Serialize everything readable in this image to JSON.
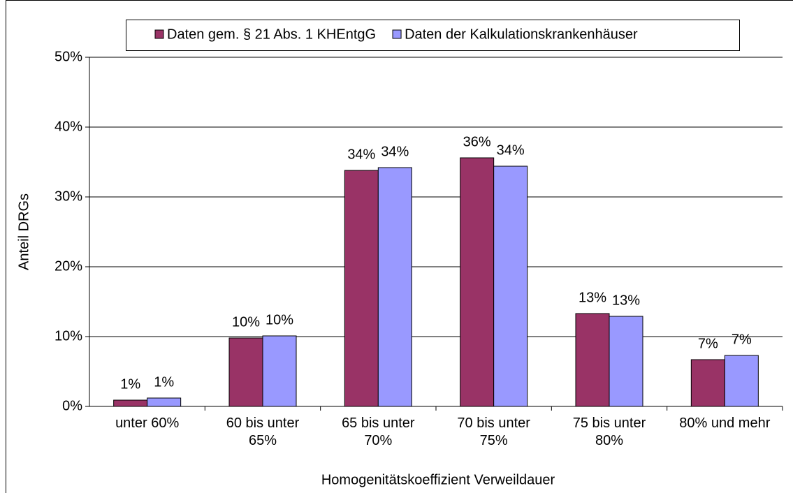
{
  "chart_data": {
    "type": "bar",
    "x_label": "Homogenitätskoeffizient Verweildauer",
    "y_label": "Anteil DRGs",
    "categories": [
      "unter 60%",
      "60 bis unter 65%",
      "65 bis unter 70%",
      "70 bis unter 75%",
      "75 bis unter 80%",
      "80% und mehr"
    ],
    "series": [
      {
        "name": "Daten gem. § 21 Abs. 1 KHEntgG",
        "color": "#993366",
        "values": [
          0.9,
          9.8,
          33.8,
          35.6,
          13.3,
          6.7
        ],
        "value_labels": [
          "1%",
          "10%",
          "34%",
          "36%",
          "13%",
          "7%"
        ]
      },
      {
        "name": "Daten der Kalkulationskrankenhäuser",
        "color": "#9999ff",
        "values": [
          1.2,
          10.1,
          34.2,
          34.4,
          12.9,
          7.3
        ],
        "value_labels": [
          "1%",
          "10%",
          "34%",
          "34%",
          "13%",
          "7%"
        ]
      }
    ],
    "ylim": [
      0,
      50
    ],
    "yticks": [
      {
        "value": 0,
        "label": "0%"
      },
      {
        "value": 10,
        "label": "10%"
      },
      {
        "value": 20,
        "label": "20%"
      },
      {
        "value": 30,
        "label": "30%"
      },
      {
        "value": 40,
        "label": "40%"
      },
      {
        "value": 50,
        "label": "50%"
      }
    ],
    "grid": true,
    "legend": "top"
  }
}
